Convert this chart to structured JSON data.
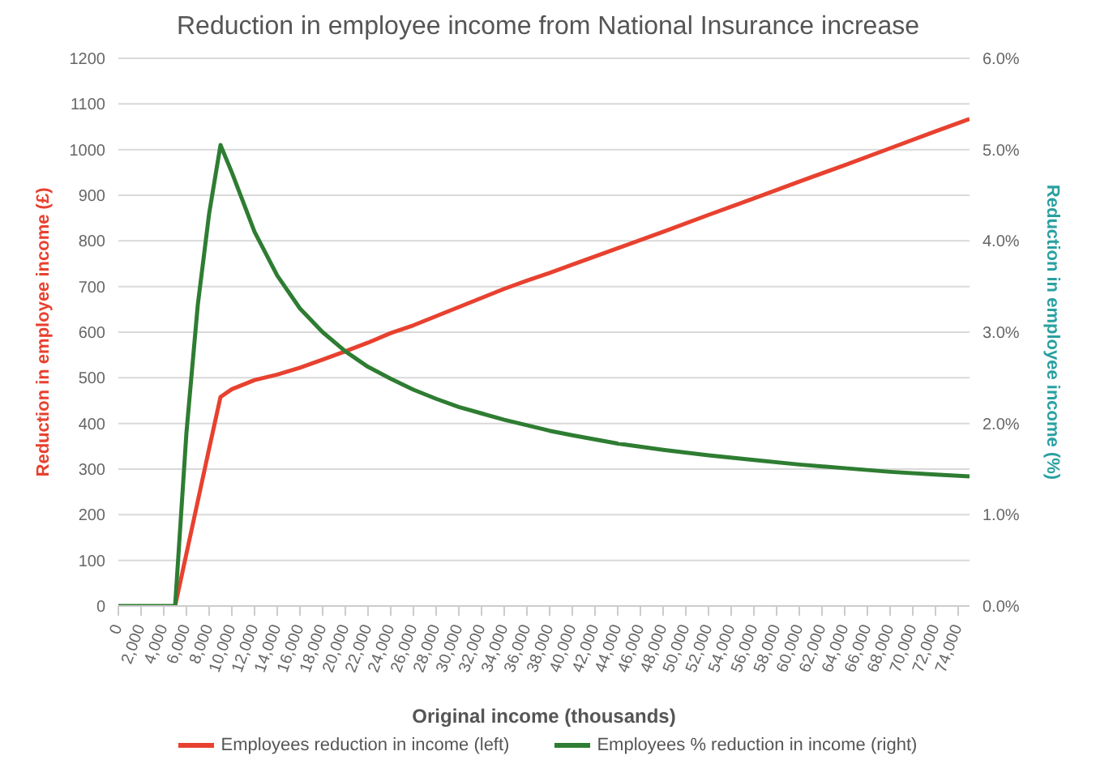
{
  "chart_data": {
    "type": "line",
    "title": "Reduction in employee income from National Insurance increase",
    "xlabel": "Original income (thousands)",
    "ylabel": "Reduction in employee income (£)",
    "y2label": "Reduction in employee income (%)",
    "x": [
      0,
      1000,
      2000,
      3000,
      4000,
      5000,
      6000,
      7000,
      8000,
      9000,
      10000,
      12000,
      14000,
      16000,
      18000,
      20000,
      22000,
      24000,
      26000,
      28000,
      30000,
      32000,
      34000,
      36000,
      38000,
      40000,
      44000,
      48000,
      52000,
      56000,
      60000,
      64000,
      68000,
      72000,
      75000
    ],
    "series": [
      {
        "name": "Employees reduction in income (left)",
        "color": "#e8412f",
        "values": [
          null,
          null,
          null,
          null,
          null,
          0,
          115,
          230,
          345,
          458,
          475,
          495,
          507,
          522,
          540,
          558,
          577,
          598,
          615,
          635,
          655,
          675,
          695,
          713,
          730,
          748,
          784,
          820,
          857,
          893,
          930,
          966,
          1003,
          1040,
          1067
        ]
      },
      {
        "name": "Employees % reduction in income (right)",
        "color": "#2e7d32",
        "axis": "y2",
        "values": [
          0,
          0,
          0,
          0,
          0,
          0,
          1.9,
          3.3,
          4.3,
          5.05,
          4.75,
          4.1,
          3.62,
          3.26,
          3.0,
          2.79,
          2.62,
          2.49,
          2.37,
          2.27,
          2.18,
          2.11,
          2.04,
          1.98,
          1.92,
          1.87,
          1.78,
          1.71,
          1.65,
          1.6,
          1.55,
          1.51,
          1.47,
          1.44,
          1.42
        ]
      }
    ],
    "xlim": [
      0,
      75000
    ],
    "xticks": [
      0,
      {
        "value": 2000,
        "label": "2,000"
      },
      {
        "value": 4000,
        "label": "4,000"
      },
      {
        "value": 6000,
        "label": "6,000"
      },
      {
        "value": 8000,
        "label": "8,000"
      },
      {
        "value": 10000,
        "label": "10,000"
      },
      {
        "value": 12000,
        "label": "12,000"
      },
      {
        "value": 14000,
        "label": "14,000"
      },
      {
        "value": 16000,
        "label": "16,000"
      },
      {
        "value": 18000,
        "label": "18,000"
      },
      {
        "value": 20000,
        "label": "20,000"
      },
      {
        "value": 22000,
        "label": "22,000"
      },
      {
        "value": 24000,
        "label": "24,000"
      },
      {
        "value": 26000,
        "label": "26,000"
      },
      {
        "value": 28000,
        "label": "28,000"
      },
      {
        "value": 30000,
        "label": "30,000"
      },
      {
        "value": 32000,
        "label": "32,000"
      },
      {
        "value": 34000,
        "label": "34,000"
      },
      {
        "value": 36000,
        "label": "36,000"
      },
      {
        "value": 38000,
        "label": "38,000"
      },
      {
        "value": 40000,
        "label": "40,000"
      },
      {
        "value": 42000,
        "label": "42,000"
      },
      {
        "value": 44000,
        "label": "44,000"
      },
      {
        "value": 46000,
        "label": "46,000"
      },
      {
        "value": 48000,
        "label": "48,000"
      },
      {
        "value": 50000,
        "label": "50,000"
      },
      {
        "value": 52000,
        "label": "52,000"
      },
      {
        "value": 54000,
        "label": "54,000"
      },
      {
        "value": 56000,
        "label": "56,000"
      },
      {
        "value": 58000,
        "label": "58,000"
      },
      {
        "value": 60000,
        "label": "60,000"
      },
      {
        "value": 62000,
        "label": "62,000"
      },
      {
        "value": 64000,
        "label": "64,000"
      },
      {
        "value": 66000,
        "label": "66,000"
      },
      {
        "value": 68000,
        "label": "68,000"
      },
      {
        "value": 70000,
        "label": "70,000"
      },
      {
        "value": 72000,
        "label": "72,000"
      },
      {
        "value": 74000,
        "label": "74,000"
      }
    ],
    "ylim": [
      0,
      1200
    ],
    "yticks": [
      0,
      100,
      200,
      300,
      400,
      500,
      600,
      700,
      800,
      900,
      1000,
      1100,
      1200
    ],
    "y2lim": [
      0,
      6
    ],
    "y2ticks": [
      {
        "value": 0,
        "label": "0.0%"
      },
      {
        "value": 1,
        "label": "1.0%"
      },
      {
        "value": 2,
        "label": "2.0%"
      },
      {
        "value": 3,
        "label": "3.0%"
      },
      {
        "value": 4,
        "label": "4.0%"
      },
      {
        "value": 5,
        "label": "5.0%"
      },
      {
        "value": 6,
        "label": "6.0%"
      }
    ],
    "grid": "y",
    "legend": "bottom",
    "marker": "none",
    "line_style": "solid"
  }
}
